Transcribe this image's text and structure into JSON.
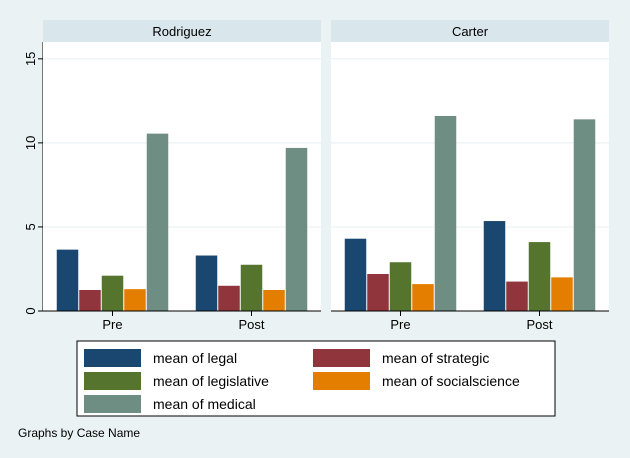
{
  "chart_data": {
    "type": "bar",
    "facet_by": "Case Name",
    "panels": [
      {
        "title": "Rodriguez",
        "categories": [
          "Pre",
          "Post"
        ],
        "series": [
          {
            "name": "mean of legal",
            "values": [
              3.65,
              3.3
            ]
          },
          {
            "name": "mean of strategic",
            "values": [
              1.25,
              1.5
            ]
          },
          {
            "name": "mean of legislative",
            "values": [
              2.1,
              2.75
            ]
          },
          {
            "name": "mean of socialscience",
            "values": [
              1.3,
              1.25
            ]
          },
          {
            "name": "mean of medical",
            "values": [
              10.55,
              9.7
            ]
          }
        ]
      },
      {
        "title": "Carter",
        "categories": [
          "Pre",
          "Post"
        ],
        "series": [
          {
            "name": "mean of legal",
            "values": [
              4.3,
              5.35
            ]
          },
          {
            "name": "mean of strategic",
            "values": [
              2.2,
              1.75
            ]
          },
          {
            "name": "mean of legislative",
            "values": [
              2.9,
              4.1
            ]
          },
          {
            "name": "mean of socialscience",
            "values": [
              1.6,
              2.0
            ]
          },
          {
            "name": "mean of medical",
            "values": [
              11.6,
              11.4
            ]
          }
        ]
      }
    ],
    "ylim": [
      0,
      16
    ],
    "yticks": [
      0,
      5,
      10,
      15
    ],
    "grid": true,
    "legend_position": "bottom",
    "colors": [
      "#1a476f",
      "#90353b",
      "#55752f",
      "#e37e00",
      "#6e8e84"
    ],
    "note": "Graphs by Case Name"
  }
}
